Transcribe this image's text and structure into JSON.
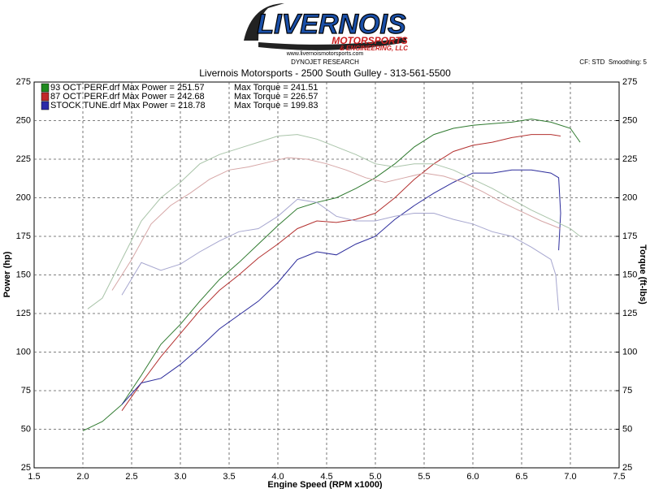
{
  "chart_data": {
    "type": "line",
    "logo": {
      "name": "LIVERNOIS",
      "sub": "MOTORSPORTS",
      "sub2": "& ENGINEERING, LLC",
      "url": "www.livernoismotorsports.com"
    },
    "brand": "DYNOJET RESEARCH",
    "settings_note": "CF: STD  Smoothing: 5",
    "title": "Livernois Motorsports - 2500 South Gulley - 313-561-5500",
    "xlabel": "Engine Speed (RPM x1000)",
    "ylabel": "Power (hp)",
    "y2label": "Torque (ft-lbs)",
    "xlim": [
      1.5,
      7.5
    ],
    "xticks": [
      1.5,
      {
        "value": 2,
        "label": "2.0"
      },
      2.5,
      {
        "value": 3,
        "label": "3.0"
      },
      3.5,
      {
        "value": 4,
        "label": "4.0"
      },
      4.5,
      {
        "value": 5,
        "label": "5.0"
      },
      5.5,
      {
        "value": 6,
        "label": "6.0"
      },
      6.5,
      {
        "value": 7,
        "label": "7.0"
      },
      7.5
    ],
    "ylim": [
      25,
      275
    ],
    "yticks": [
      25,
      50,
      75,
      100,
      125,
      150,
      175,
      200,
      225,
      250,
      275
    ],
    "y2lim": [
      25,
      275
    ],
    "y2ticks": [
      25,
      50,
      75,
      100,
      125,
      150,
      175,
      200,
      225,
      250,
      275
    ],
    "grid": true,
    "legend": [
      {
        "label": "93 OCT PERF.drf Max Power = 251.57",
        "torque": "Max Torque = 241.51",
        "color": "#1f8a1f"
      },
      {
        "label": "87 OCT PERF.drf Max Power = 242.68",
        "torque": "Max Torque = 226.57",
        "color": "#c0282a"
      },
      {
        "label": "STOCK TUNE.drf Max Power = 218.78",
        "torque": "Max Torque = 199.83",
        "color": "#2a2aa8"
      }
    ],
    "series": [
      {
        "color": "#2f7a2f",
        "x": [
          2.0,
          2.2,
          2.4,
          2.6,
          2.8,
          3.0,
          3.2,
          3.4,
          3.6,
          3.8,
          4.0,
          4.2,
          4.4,
          4.6,
          4.8,
          5.0,
          5.2,
          5.4,
          5.6,
          5.8,
          6.0,
          6.2,
          6.4,
          6.6,
          6.8,
          7.0,
          7.1
        ],
        "values": [
          49,
          55,
          66,
          85,
          105,
          118,
          133,
          147,
          158,
          170,
          182,
          193,
          197,
          200,
          206,
          213,
          222,
          233,
          241,
          245,
          247,
          248,
          249,
          251,
          249,
          245,
          236
        ]
      },
      {
        "color": "#b3302f",
        "x": [
          2.4,
          2.6,
          2.8,
          3.0,
          3.2,
          3.4,
          3.6,
          3.8,
          4.0,
          4.2,
          4.4,
          4.6,
          4.8,
          5.0,
          5.2,
          5.4,
          5.6,
          5.8,
          6.0,
          6.2,
          6.4,
          6.6,
          6.8,
          6.9
        ],
        "values": [
          62,
          80,
          97,
          112,
          127,
          140,
          150,
          161,
          170,
          180,
          185,
          184,
          186,
          190,
          200,
          212,
          222,
          230,
          234,
          236,
          239,
          241,
          241,
          240
        ]
      },
      {
        "color": "#2b2b9b",
        "x": [
          2.4,
          2.6,
          2.8,
          3.0,
          3.2,
          3.4,
          3.6,
          3.8,
          4.0,
          4.2,
          4.4,
          4.6,
          4.8,
          5.0,
          5.2,
          5.4,
          5.6,
          5.8,
          6.0,
          6.2,
          6.4,
          6.6,
          6.8,
          6.88,
          6.9,
          6.88
        ],
        "values": [
          66,
          80,
          83,
          92,
          103,
          115,
          124,
          133,
          145,
          160,
          165,
          163,
          170,
          175,
          186,
          195,
          203,
          210,
          216,
          216,
          218,
          218,
          216,
          213,
          190,
          166
        ]
      },
      {
        "color": "#a9c4a9",
        "axis": "y2",
        "x": [
          2.05,
          2.2,
          2.4,
          2.6,
          2.8,
          3.0,
          3.2,
          3.4,
          3.6,
          3.8,
          4.0,
          4.2,
          4.4,
          4.6,
          4.8,
          5.0,
          5.2,
          5.4,
          5.6,
          5.8,
          6.0,
          6.2,
          6.4,
          6.6,
          6.8,
          7.0,
          7.1
        ],
        "values": [
          128,
          135,
          160,
          185,
          200,
          210,
          222,
          228,
          232,
          236,
          240,
          241,
          238,
          233,
          228,
          222,
          220,
          222,
          222,
          218,
          212,
          206,
          199,
          192,
          186,
          180,
          175
        ]
      },
      {
        "color": "#d6a6a6",
        "axis": "y2",
        "x": [
          2.3,
          2.5,
          2.7,
          2.9,
          3.1,
          3.3,
          3.5,
          3.7,
          3.9,
          4.1,
          4.3,
          4.5,
          4.7,
          4.9,
          5.1,
          5.3,
          5.5,
          5.7,
          5.9,
          6.1,
          6.3,
          6.5,
          6.7,
          6.9
        ],
        "values": [
          140,
          160,
          183,
          195,
          203,
          212,
          218,
          220,
          223,
          226,
          225,
          222,
          218,
          213,
          210,
          213,
          216,
          214,
          210,
          204,
          197,
          191,
          185,
          180
        ]
      },
      {
        "color": "#a6a6cf",
        "axis": "y2",
        "x": [
          2.4,
          2.6,
          2.8,
          3.0,
          3.2,
          3.4,
          3.6,
          3.8,
          4.0,
          4.2,
          4.4,
          4.6,
          4.8,
          5.0,
          5.2,
          5.4,
          5.6,
          5.8,
          6.0,
          6.2,
          6.4,
          6.6,
          6.8,
          6.85,
          6.88
        ],
        "values": [
          137,
          158,
          153,
          157,
          165,
          172,
          178,
          180,
          188,
          199,
          197,
          188,
          185,
          185,
          188,
          190,
          190,
          186,
          183,
          178,
          175,
          168,
          160,
          150,
          127
        ]
      }
    ]
  }
}
